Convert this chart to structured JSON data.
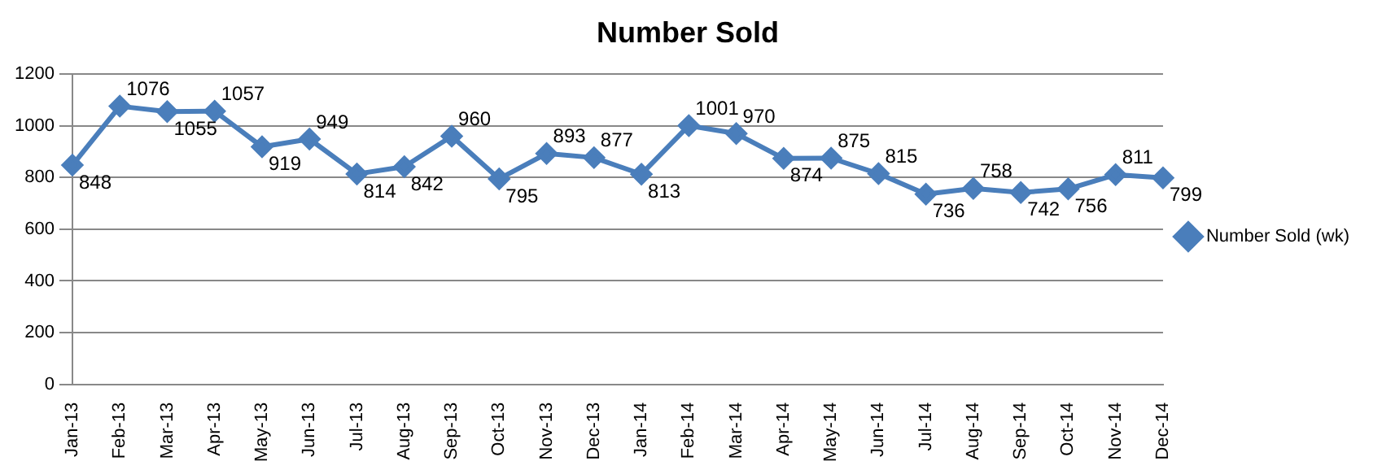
{
  "chart_data": {
    "type": "line",
    "title": "Number Sold",
    "categories": [
      "Jan-13",
      "Feb-13",
      "Mar-13",
      "Apr-13",
      "May-13",
      "Jun-13",
      "Jul-13",
      "Aug-13",
      "Sep-13",
      "Oct-13",
      "Nov-13",
      "Dec-13",
      "Jan-14",
      "Feb-14",
      "Mar-14",
      "Apr-14",
      "May-14",
      "Jun-14",
      "Jul-14",
      "Aug-14",
      "Sep-14",
      "Oct-14",
      "Nov-14",
      "Dec-14"
    ],
    "series": [
      {
        "name": "Number Sold (wk)",
        "color": "#4a7ebb",
        "values": [
          848,
          1076,
          1055,
          1057,
          919,
          949,
          814,
          842,
          960,
          795,
          893,
          877,
          813,
          1001,
          970,
          874,
          875,
          815,
          736,
          758,
          742,
          756,
          811,
          799
        ]
      }
    ],
    "ylim": [
      0,
      1200
    ],
    "yticks": [
      0,
      200,
      400,
      600,
      800,
      1000,
      1200
    ],
    "grid": "y",
    "legend": "right",
    "marker": "diamond",
    "line_style": "solid",
    "data_labels": true
  }
}
